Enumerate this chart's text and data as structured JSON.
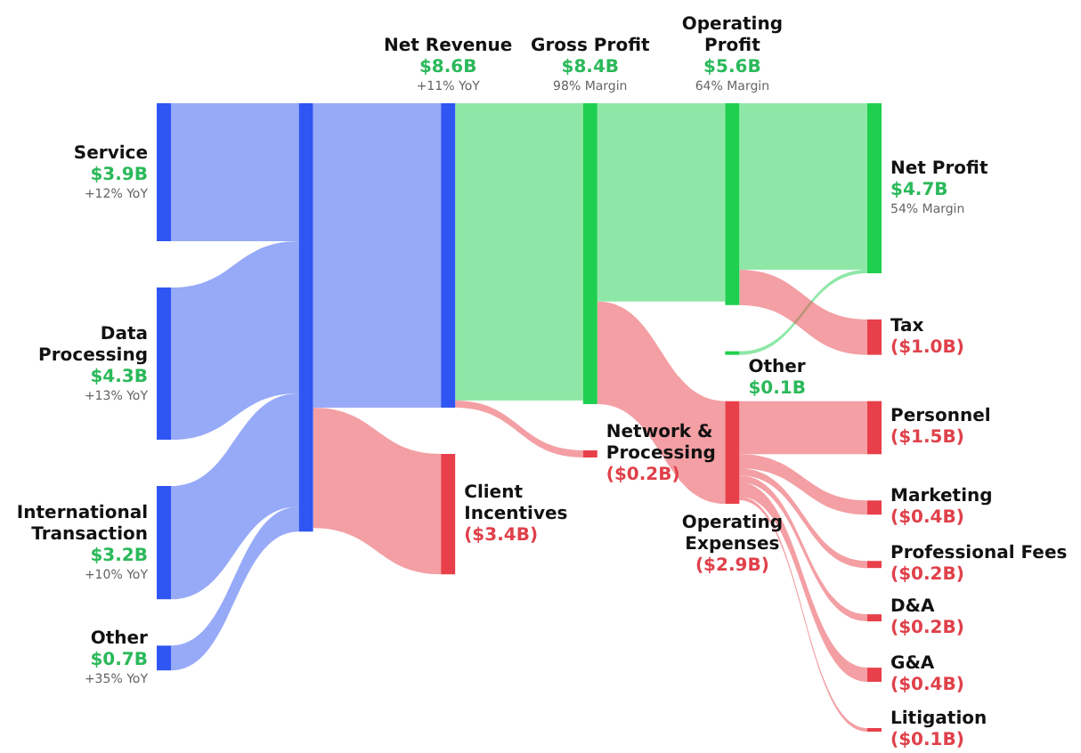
{
  "chart_data": {
    "type": "other",
    "categories": [
      "Service",
      "Data Processing",
      "International Transaction",
      "Other",
      null,
      "Net Revenue",
      "Client Incentives",
      "Gross Profit",
      "Network & Processing",
      "Operating Profit",
      "Other",
      "Operating Expenses",
      "Net Profit",
      "Tax",
      "Personnel",
      "Marketing",
      "Professional Fees",
      "D&A",
      "G&A",
      "Litigation"
    ],
    "values": [
      3.9,
      4.3,
      3.2,
      0.7,
      null,
      8.6,
      -3.4,
      8.4,
      -0.2,
      5.6,
      0.1,
      -2.9,
      4.7,
      -1.0,
      -1.5,
      -0.4,
      -0.2,
      -0.2,
      -0.4,
      -0.1
    ],
    "value_labels": [
      "$3.9B",
      "$4.3B",
      "$3.2B",
      "$0.7B",
      null,
      "$8.6B",
      "($3.4B)",
      "$8.4B",
      "($0.2B)",
      "$5.6B",
      "$0.1B",
      "($2.9B)",
      "$4.7B",
      "($1.0B)",
      "($1.5B)",
      "($0.4B)",
      "($0.2B)",
      "($0.2B)",
      "($0.4B)",
      "($0.1B)"
    ],
    "colors": [
      "#2f55f2",
      "#2f55f2",
      "#2f55f2",
      "#2f55f2",
      "#2f55f2",
      "#2f55f2",
      "#e8404a",
      "#1fcf4f",
      "#e8404a",
      "#1fcf4f",
      "#1fcf4f",
      "#e8404a",
      "#1fcf4f",
      "#e8404a",
      "#e8404a",
      "#e8404a",
      "#e8404a",
      "#e8404a",
      "#e8404a",
      "#e8404a"
    ],
    "annotations": [
      "+12% YoY",
      "+13% YoY",
      "+10% YoY",
      "+35% YoY",
      null,
      "+11% YoY",
      null,
      "98% Margin",
      null,
      "64% Margin",
      null,
      null,
      "54% Margin",
      null,
      null,
      null,
      null,
      null,
      null,
      null
    ]
  }
}
